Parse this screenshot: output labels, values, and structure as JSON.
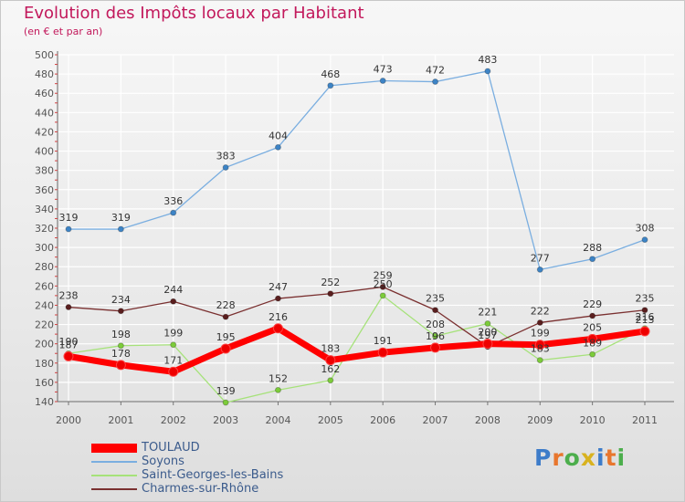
{
  "title": "Evolution des Impôts locaux par Habitant",
  "subtitle": "(en € et par an)",
  "brand": "Proxiti",
  "colors": {
    "title": "#c2185b",
    "legend_text": "#3b5b8c",
    "axis": "#555555",
    "grid": "#ffffff"
  },
  "chart_data": {
    "type": "line",
    "title": "Evolution des Impôts locaux par Habitant",
    "subtitle": "(en € et par an)",
    "xlabel": "",
    "ylabel": "",
    "x": [
      "2000",
      "2001",
      "2002",
      "2003",
      "2004",
      "2005",
      "2006",
      "2007",
      "2008",
      "2009",
      "2010",
      "2011"
    ],
    "ylim": [
      140,
      500
    ],
    "yticks": [
      140,
      160,
      180,
      200,
      220,
      240,
      260,
      280,
      300,
      320,
      340,
      360,
      380,
      400,
      420,
      440,
      460,
      480,
      500
    ],
    "grid": true,
    "legend_position": "bottom-left",
    "series": [
      {
        "name": "TOULAUD",
        "color": "#ff0000",
        "width": 7,
        "marker": "#ee0000",
        "values": [
          187,
          178,
          171,
          195,
          216,
          183,
          191,
          196,
          200,
          199,
          205,
          213
        ],
        "labels": [
          "187",
          "178",
          "171",
          "195",
          "216",
          "183",
          "191",
          "196",
          "200",
          "199",
          "205",
          "213"
        ]
      },
      {
        "name": "Soyons",
        "color": "#7aaee0",
        "width": 1.3,
        "marker": "#3d84c6",
        "values": [
          319,
          319,
          336,
          383,
          404,
          468,
          473,
          472,
          483,
          277,
          288,
          308
        ],
        "labels": [
          "319",
          "319",
          "336",
          "383",
          "404",
          "468",
          "473",
          "472",
          "483",
          "277",
          "288",
          "308"
        ]
      },
      {
        "name": "Saint-Georges-les-Bains",
        "color": "#a6e27a",
        "width": 1.3,
        "marker": "#7ccc3a",
        "values": [
          190,
          198,
          199,
          139,
          152,
          162,
          250,
          208,
          221,
          183,
          189,
          216
        ],
        "labels": [
          "190",
          "198",
          "199",
          "139",
          "152",
          "162",
          "250",
          "208",
          "221",
          "183",
          "189",
          "216"
        ]
      },
      {
        "name": "Charmes-sur-Rhône",
        "color": "#7a3030",
        "width": 1.3,
        "marker": "#5a1e1e",
        "values": [
          238,
          234,
          244,
          228,
          247,
          252,
          259,
          235,
          197,
          222,
          229,
          235
        ],
        "labels": [
          "238",
          "234",
          "244",
          "228",
          "247",
          "252",
          "259",
          "235",
          "197",
          "222",
          "229",
          "235"
        ]
      }
    ]
  }
}
